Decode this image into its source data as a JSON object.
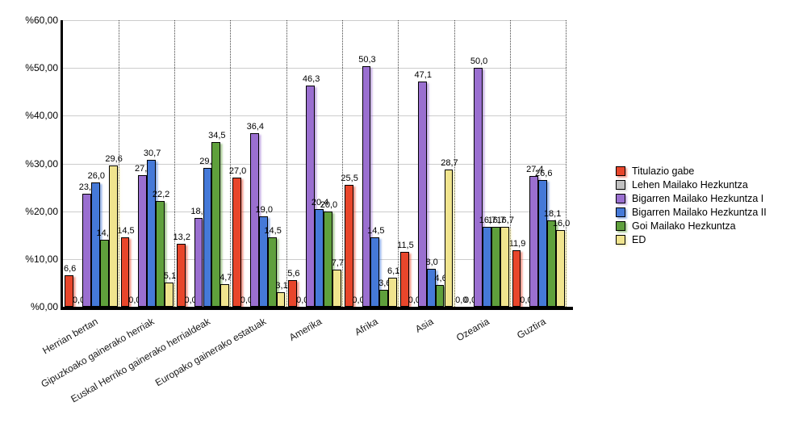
{
  "chart_data": {
    "type": "bar",
    "title": "",
    "categories": [
      "Herrian bertan",
      "Gipuzkoako gainerako herriak",
      "Euskal Herriko gainerako herrialdeak",
      "Europako gainerako estatuak",
      "Amerika",
      "Afrika",
      "Asia",
      "Ozeania",
      "Guztira"
    ],
    "series": [
      {
        "name": "Titulazio gabe",
        "color": "#E8462B",
        "values": [
          6.6,
          14.5,
          13.2,
          27.0,
          5.6,
          25.5,
          11.5,
          0.0,
          11.9
        ]
      },
      {
        "name": "Lehen Mailako Hezkuntza",
        "color": "#C0C0C0",
        "values": [
          0.0,
          0.0,
          0.0,
          0.0,
          0.0,
          0.0,
          0.0,
          0.0,
          0.0
        ]
      },
      {
        "name": "Bigarren Mailako Hezkuntza I",
        "color": "#9A6FD0",
        "values": [
          23.7,
          27.5,
          18.6,
          36.4,
          46.3,
          50.3,
          47.1,
          50.0,
          27.4
        ]
      },
      {
        "name": "Bigarren Mailako Hezkuntza II",
        "color": "#4579D8",
        "values": [
          26.0,
          30.7,
          29.0,
          19.0,
          20.4,
          14.5,
          8.0,
          16.7,
          26.6
        ]
      },
      {
        "name": "Goi Mailako Hezkuntza",
        "color": "#5FA03C",
        "values": [
          14.1,
          22.2,
          34.5,
          14.5,
          20.0,
          3.6,
          4.6,
          16.7,
          18.1
        ]
      },
      {
        "name": "ED",
        "color": "#F0E48E",
        "values": [
          29.6,
          5.1,
          4.7,
          3.1,
          7.7,
          6.1,
          28.7,
          16.7,
          16.0
        ]
      }
    ],
    "ylim": [
      0,
      60
    ],
    "y_tick_step": 10,
    "y_tick_labels": [
      "%60,00",
      "%50,00",
      "%40,00",
      "%30,00",
      "%20,00",
      "%10,00",
      "%0,00"
    ],
    "value_label_decimal_separator": ",",
    "grid": "horizontal solid light-gray every 10; dotted vertical separators between categories",
    "legend_position": "right",
    "bar_outline_color": "#000000",
    "background_color": "#FFFFFF"
  }
}
